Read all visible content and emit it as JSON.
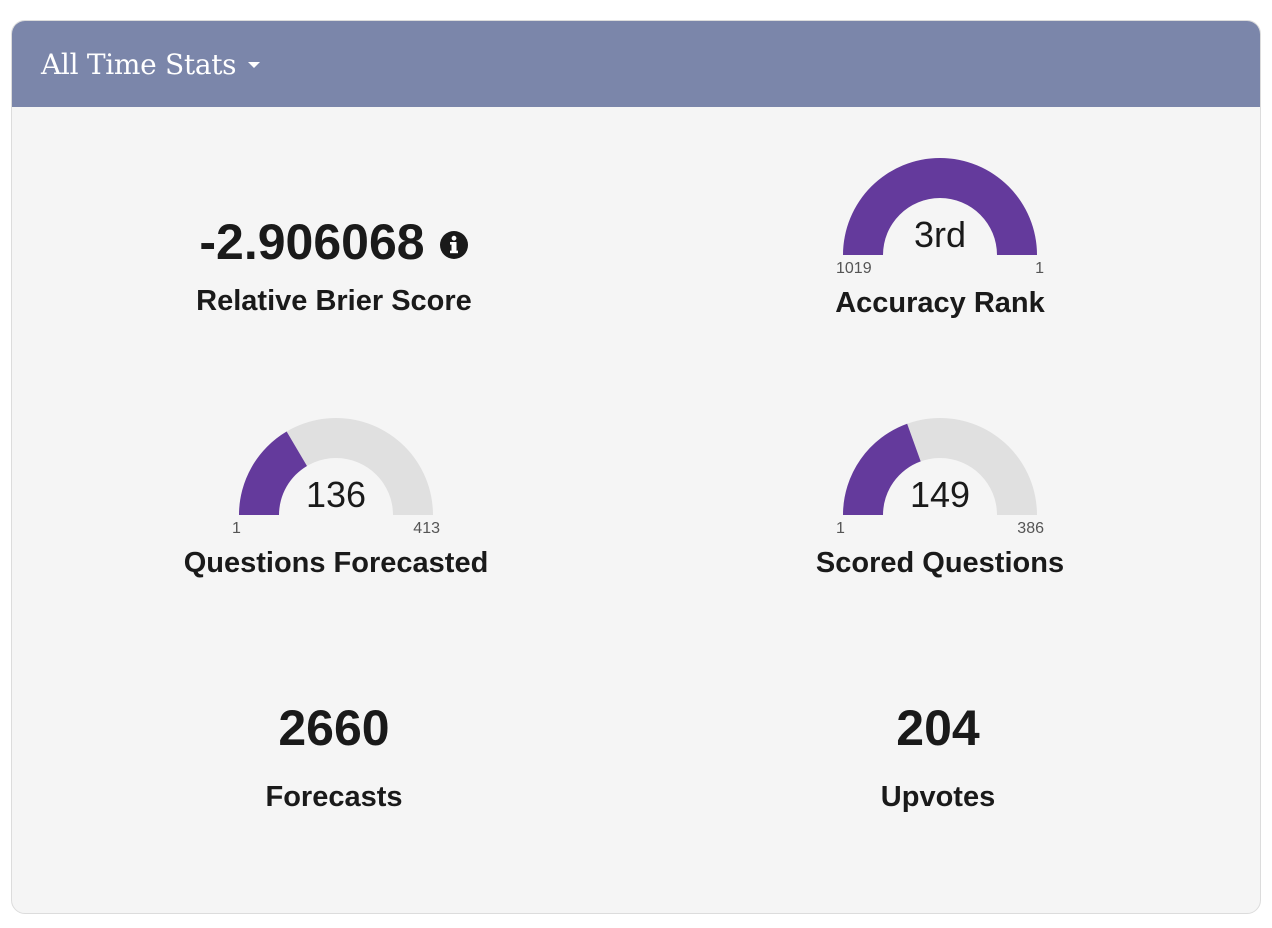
{
  "header": {
    "title": "All Time Stats"
  },
  "colors": {
    "header_bg": "#7b86aa",
    "card_bg": "#f5f5f5",
    "gauge_fill": "#643a9c",
    "gauge_track": "#e0e0e0"
  },
  "icons": {
    "dropdown": "caret-down-icon",
    "info": "info-circle-icon"
  },
  "stats": {
    "brier": {
      "value": "-2.906068",
      "label": "Relative Brier Score"
    },
    "accuracy_rank": {
      "value_text": "3rd",
      "label": "Accuracy Rank",
      "min_label": "1019",
      "max_label": "1",
      "fill_fraction": 1.0
    },
    "questions_forecasted": {
      "value_text": "136",
      "label": "Questions Forecasted",
      "min_label": "1",
      "max_label": "413",
      "fill_fraction": 0.33
    },
    "scored_questions": {
      "value_text": "149",
      "label": "Scored Questions",
      "min_label": "1",
      "max_label": "386",
      "fill_fraction": 0.39
    },
    "forecasts": {
      "value": "2660",
      "label": "Forecasts"
    },
    "upvotes": {
      "value": "204",
      "label": "Upvotes"
    }
  }
}
